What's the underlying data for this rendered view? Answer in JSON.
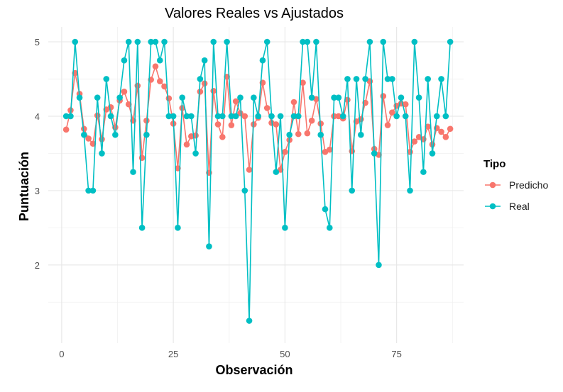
{
  "chart_data": {
    "type": "line",
    "title": "Valores Reales vs Ajustados",
    "xlabel": "Observación",
    "ylabel": "Puntuación",
    "xlim": [
      -3,
      90
    ],
    "ylim": [
      0.95,
      5.2
    ],
    "x_ticks": [
      0,
      25,
      50,
      75
    ],
    "y_ticks": [
      2,
      3,
      4,
      5
    ],
    "grid": true,
    "legend": {
      "title": "Tipo",
      "position": "right"
    },
    "series": [
      {
        "name": "Predicho",
        "color": "#F8766D",
        "x": [
          1,
          2,
          3,
          4,
          5,
          6,
          7,
          8,
          9,
          10,
          11,
          12,
          13,
          14,
          15,
          16,
          17,
          18,
          19,
          20,
          21,
          22,
          23,
          24,
          25,
          26,
          27,
          28,
          29,
          30,
          31,
          32,
          33,
          34,
          35,
          36,
          37,
          38,
          39,
          40,
          41,
          42,
          43,
          44,
          45,
          46,
          47,
          48,
          49,
          50,
          51,
          52,
          53,
          54,
          55,
          56,
          57,
          58,
          59,
          60,
          61,
          62,
          63,
          64,
          65,
          66,
          67,
          68,
          69,
          70,
          71,
          72,
          73,
          74,
          75,
          76,
          77,
          78,
          79,
          80,
          81,
          82,
          83,
          84,
          85,
          86,
          87
        ],
        "values": [
          3.82,
          4.08,
          4.58,
          4.3,
          3.83,
          3.7,
          3.63,
          4.01,
          3.69,
          4.09,
          4.12,
          3.85,
          4.21,
          4.33,
          4.16,
          3.94,
          4.41,
          3.44,
          3.94,
          4.49,
          4.67,
          4.47,
          4.4,
          4.24,
          3.9,
          3.3,
          4.11,
          3.62,
          3.73,
          3.74,
          4.33,
          4.44,
          3.24,
          4.34,
          3.89,
          3.72,
          4.53,
          3.88,
          4.2,
          4.04,
          4.0,
          3.28,
          3.89,
          3.98,
          4.45,
          4.11,
          3.91,
          3.89,
          3.28,
          3.52,
          3.68,
          4.19,
          3.76,
          4.45,
          3.77,
          3.94,
          4.23,
          3.9,
          3.52,
          3.55,
          4.0,
          4.0,
          3.97,
          4.22,
          3.53,
          3.93,
          3.96,
          4.18,
          4.47,
          3.56,
          3.48,
          4.27,
          3.88,
          4.05,
          4.14,
          4.17,
          4.16,
          3.52,
          3.66,
          3.72,
          3.69,
          3.86,
          3.62,
          3.84,
          3.79,
          3.72,
          3.83
        ]
      },
      {
        "name": "Real",
        "color": "#00BFC4",
        "x": [
          1,
          2,
          3,
          4,
          5,
          6,
          7,
          8,
          9,
          10,
          11,
          12,
          13,
          14,
          15,
          16,
          17,
          18,
          19,
          20,
          21,
          22,
          23,
          24,
          25,
          26,
          27,
          28,
          29,
          30,
          31,
          32,
          33,
          34,
          35,
          36,
          37,
          38,
          39,
          40,
          41,
          42,
          43,
          44,
          45,
          46,
          47,
          48,
          49,
          50,
          51,
          52,
          53,
          54,
          55,
          56,
          57,
          58,
          59,
          60,
          61,
          62,
          63,
          64,
          65,
          66,
          67,
          68,
          69,
          70,
          71,
          72,
          73,
          74,
          75,
          76,
          77,
          78,
          79,
          80,
          81,
          82,
          83,
          84,
          85,
          86,
          87
        ],
        "values": [
          4.0,
          4.0,
          5.0,
          4.25,
          3.75,
          3.0,
          3.0,
          4.25,
          3.5,
          4.5,
          4.0,
          3.75,
          4.25,
          4.75,
          5.0,
          3.25,
          5.0,
          2.5,
          3.75,
          5.0,
          5.0,
          4.75,
          5.0,
          4.0,
          4.0,
          2.5,
          4.25,
          4.0,
          4.0,
          3.5,
          4.5,
          4.75,
          2.25,
          5.0,
          4.0,
          4.0,
          5.0,
          4.0,
          4.0,
          4.25,
          3.0,
          1.25,
          4.25,
          4.0,
          4.75,
          5.0,
          4.0,
          3.25,
          4.0,
          2.5,
          3.75,
          4.0,
          4.0,
          5.0,
          5.0,
          4.25,
          5.0,
          3.75,
          2.75,
          2.5,
          4.25,
          4.25,
          4.0,
          4.5,
          3.0,
          4.5,
          3.75,
          4.5,
          5.0,
          3.5,
          2.0,
          5.0,
          4.5,
          4.5,
          4.0,
          4.25,
          4.0,
          3.0,
          5.0,
          4.25,
          3.25,
          4.5,
          3.5,
          4.0,
          4.5,
          4.0,
          5.0
        ]
      }
    ]
  }
}
